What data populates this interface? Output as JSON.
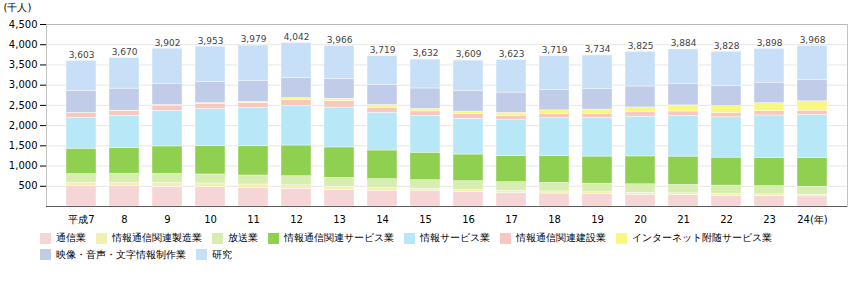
{
  "chart_data": {
    "type": "bar",
    "stacked": true,
    "categories": [
      "平成7",
      "8",
      "9",
      "10",
      "11",
      "12",
      "13",
      "14",
      "15",
      "16",
      "17",
      "18",
      "19",
      "20",
      "21",
      "22",
      "23",
      "24(年)"
    ],
    "series": [
      {
        "name": "通信業",
        "color": "#f5d5d5",
        "values": [
          500,
          500,
          490,
          475,
          455,
          435,
          410,
          390,
          375,
          355,
          335,
          320,
          305,
          290,
          278,
          268,
          258,
          248
        ]
      },
      {
        "name": "情報通信関連製造業",
        "color": "#f0f0b0",
        "values": [
          90,
          90,
          95,
          95,
          90,
          88,
          75,
          65,
          60,
          57,
          55,
          53,
          50,
          48,
          46,
          44,
          42,
          41
        ]
      },
      {
        "name": "放送業",
        "color": "#d8edb0",
        "values": [
          210,
          215,
          220,
          222,
          222,
          225,
          225,
          220,
          216,
          213,
          210,
          210,
          210,
          210,
          210,
          205,
          204,
          200
        ]
      },
      {
        "name": "情報通信関連サービス業",
        "color": "#90d050",
        "values": [
          630,
          640,
          680,
          700,
          720,
          760,
          750,
          710,
          680,
          660,
          650,
          662,
          670,
          690,
          700,
          692,
          702,
          712
        ]
      },
      {
        "name": "情報サービス業",
        "color": "#b8e8f8",
        "values": [
          760,
          800,
          880,
          920,
          950,
          975,
          985,
          935,
          905,
          885,
          885,
          935,
          955,
          985,
          1005,
          995,
          1045,
          1065
        ]
      },
      {
        "name": "情報通信関連建設業",
        "color": "#f8c8c0",
        "values": [
          115,
          115,
          130,
          130,
          125,
          155,
          160,
          125,
          115,
          110,
          105,
          105,
          105,
          105,
          110,
          105,
          105,
          105
        ]
      },
      {
        "name": "インターネット附随サービス業",
        "color": "#f8f880",
        "values": [
          8,
          10,
          12,
          15,
          25,
          45,
          58,
          65,
          65,
          67,
          75,
          92,
          102,
          122,
          150,
          175,
          200,
          230
        ]
      },
      {
        "name": "映像・音声・文字情報制作業",
        "color": "#c0cce8",
        "values": [
          540,
          545,
          530,
          522,
          512,
          502,
          492,
          502,
          502,
          502,
          502,
          502,
          502,
          517,
          522,
          502,
          507,
          522
        ]
      },
      {
        "name": "研究",
        "color": "#c8dff8",
        "values": [
          750,
          755,
          865,
          874,
          880,
          857,
          811,
          707,
          714,
          760,
          806,
          840,
          835,
          858,
          863,
          842,
          835,
          845
        ]
      }
    ],
    "totals": [
      3603,
      3670,
      3902,
      3953,
      3979,
      4042,
      3966,
      3719,
      3632,
      3609,
      3623,
      3719,
      3734,
      3825,
      3884,
      3828,
      3898,
      3968
    ],
    "total_labels": [
      "3,603",
      "3,670",
      "3,902",
      "3,953",
      "3,979",
      "4,042",
      "3,966",
      "3,719",
      "3,632",
      "3,609",
      "3,623",
      "3,719",
      "3,734",
      "3,825",
      "3,884",
      "3,828",
      "3,898",
      "3,968"
    ],
    "ylabel": "(千人)",
    "ylim": [
      0,
      4500
    ],
    "yticks": [
      500,
      {
        "value": 1000,
        "label": "1,000"
      },
      {
        "value": 1500,
        "label": "1,500"
      },
      {
        "value": 2000,
        "label": "2,000"
      },
      {
        "value": 2500,
        "label": "2,500"
      },
      {
        "value": 3000,
        "label": "3,000"
      },
      {
        "value": 3500,
        "label": "3,500"
      },
      {
        "value": 4000,
        "label": "4,000"
      },
      {
        "value": 4500,
        "label": "4,500"
      }
    ],
    "grid": true,
    "legend": "bottom"
  }
}
